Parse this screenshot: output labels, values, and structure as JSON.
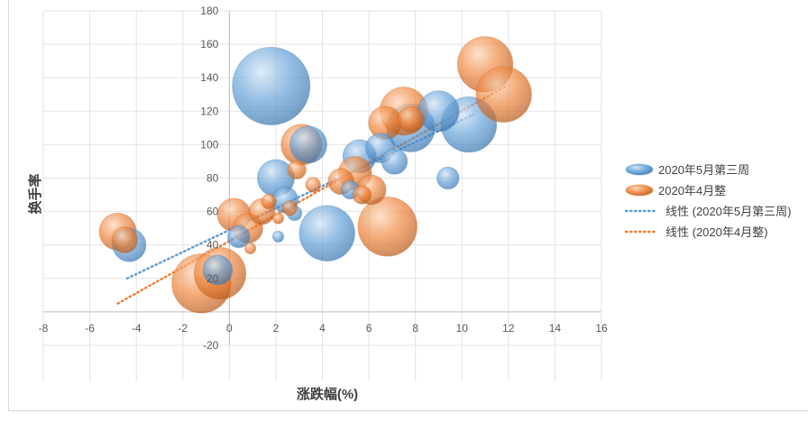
{
  "chart_data": {
    "type": "bubble",
    "xlabel": "涨跌幅(%)",
    "ylabel": "换手率",
    "xlim": [
      -8,
      16
    ],
    "ylim": [
      -20,
      180
    ],
    "xticks": [
      -8,
      -6,
      -4,
      -2,
      0,
      2,
      4,
      6,
      8,
      10,
      12,
      14,
      16
    ],
    "yticks": [
      -20,
      20,
      40,
      60,
      80,
      100,
      120,
      140,
      160,
      180
    ],
    "grid": true,
    "legend_position": "right",
    "series": [
      {
        "name": "2020年5月第三周",
        "color": "#5b9bd5",
        "points": [
          {
            "x": 1.8,
            "y": 135,
            "r": 21
          },
          {
            "x": 10.3,
            "y": 112,
            "r": 15
          },
          {
            "x": 4.2,
            "y": 47,
            "r": 15
          },
          {
            "x": 7.8,
            "y": 110,
            "r": 13
          },
          {
            "x": 9.0,
            "y": 120,
            "r": 11
          },
          {
            "x": 3.4,
            "y": 100,
            "r": 10
          },
          {
            "x": 2.0,
            "y": 80,
            "r": 10
          },
          {
            "x": 5.6,
            "y": 93,
            "r": 9
          },
          {
            "x": 6.5,
            "y": 98,
            "r": 8
          },
          {
            "x": 7.1,
            "y": 90,
            "r": 7
          },
          {
            "x": -4.3,
            "y": 40,
            "r": 9
          },
          {
            "x": 2.4,
            "y": 67,
            "r": 7
          },
          {
            "x": 9.4,
            "y": 80,
            "r": 6
          },
          {
            "x": 0.4,
            "y": 45,
            "r": 6
          },
          {
            "x": 2.8,
            "y": 59,
            "r": 4
          },
          {
            "x": 2.1,
            "y": 45,
            "r": 3
          },
          {
            "x": 5.2,
            "y": 73,
            "r": 5
          },
          {
            "x": -0.5,
            "y": 25,
            "r": 8
          }
        ]
      },
      {
        "name": "2020年4月整",
        "color": "#ed7d31",
        "points": [
          {
            "x": 7.5,
            "y": 120,
            "r": 13
          },
          {
            "x": 11.0,
            "y": 148,
            "r": 15
          },
          {
            "x": 11.8,
            "y": 130,
            "r": 15
          },
          {
            "x": 6.8,
            "y": 51,
            "r": 16
          },
          {
            "x": 3.1,
            "y": 100,
            "r": 11
          },
          {
            "x": -1.2,
            "y": 17,
            "r": 16
          },
          {
            "x": -0.4,
            "y": 23,
            "r": 14
          },
          {
            "x": -4.8,
            "y": 48,
            "r": 10
          },
          {
            "x": -4.5,
            "y": 43,
            "r": 7
          },
          {
            "x": 0.2,
            "y": 58,
            "r": 9
          },
          {
            "x": 6.7,
            "y": 113,
            "r": 9
          },
          {
            "x": 7.8,
            "y": 115,
            "r": 7
          },
          {
            "x": 5.4,
            "y": 83,
            "r": 9
          },
          {
            "x": 4.8,
            "y": 78,
            "r": 7
          },
          {
            "x": 6.1,
            "y": 73,
            "r": 8
          },
          {
            "x": 0.8,
            "y": 50,
            "r": 8
          },
          {
            "x": 1.4,
            "y": 60,
            "r": 7
          },
          {
            "x": 2.9,
            "y": 85,
            "r": 5
          },
          {
            "x": 5.7,
            "y": 70,
            "r": 5
          },
          {
            "x": 3.6,
            "y": 76,
            "r": 4
          },
          {
            "x": 2.6,
            "y": 62,
            "r": 4
          },
          {
            "x": 2.1,
            "y": 56,
            "r": 3
          },
          {
            "x": 1.7,
            "y": 66,
            "r": 4
          },
          {
            "x": 0.9,
            "y": 38,
            "r": 3
          }
        ]
      }
    ],
    "trendlines": [
      {
        "name": "线性 (2020年5月第三周)",
        "color": "#5b9bd5",
        "from": [
          -4.4,
          20
        ],
        "to": [
          10.5,
          118
        ]
      },
      {
        "name": "线性 (2020年4月整)",
        "color": "#ed7d31",
        "from": [
          -4.8,
          5
        ],
        "to": [
          11.9,
          135
        ]
      }
    ]
  }
}
